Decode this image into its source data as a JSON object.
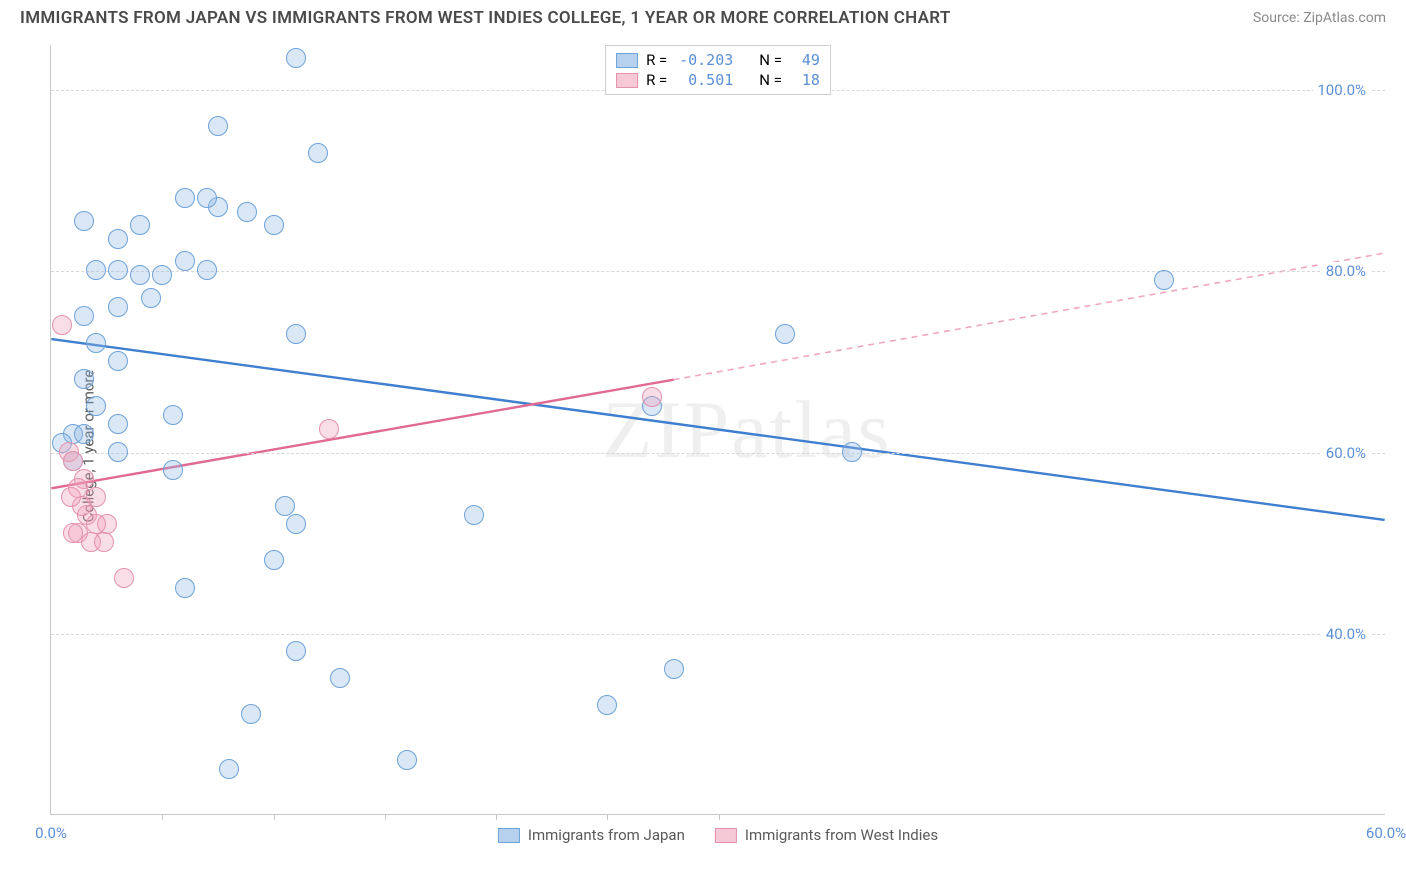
{
  "title": "IMMIGRANTS FROM JAPAN VS IMMIGRANTS FROM WEST INDIES COLLEGE, 1 YEAR OR MORE CORRELATION CHART",
  "source": "Source: ZipAtlas.com",
  "watermark": "ZIPatlas",
  "y_axis_title": "College, 1 year or more",
  "chart": {
    "type": "scatter",
    "xlim": [
      0,
      60
    ],
    "ylim": [
      20,
      105
    ],
    "background_color": "#ffffff",
    "grid_color": "#d8d8d8",
    "axis_color": "#c8c8c8",
    "tick_color": "#5b8fd6",
    "tick_fontsize": 15,
    "xticks": [
      0,
      5,
      10,
      15,
      20,
      25,
      30,
      60
    ],
    "xtick_labels": {
      "0": "0.0%",
      "60": "60.0%"
    },
    "yticks": [
      40,
      60,
      80,
      100
    ],
    "ytick_labels": {
      "40": "40.0%",
      "60": "60.0%",
      "80": "80.0%",
      "100": "100.0%"
    },
    "series": [
      {
        "name": "Immigrants from Japan",
        "fill": "rgba(145,185,230,0.35)",
        "stroke": "#6ea3d8",
        "swatch_fill": "#b6d1ee",
        "swatch_stroke": "#6ea3d8",
        "marker_radius": 10,
        "R": "-0.203",
        "N": "49",
        "trend": {
          "x1": 0,
          "y1": 72.5,
          "x2": 60,
          "y2": 52.5,
          "color": "#3f7fcf",
          "width": 2.4
        },
        "points": [
          [
            11,
            103.5
          ],
          [
            7.5,
            96
          ],
          [
            12,
            93
          ],
          [
            10,
            85
          ],
          [
            7.5,
            87
          ],
          [
            8.8,
            86.5
          ],
          [
            7,
            88
          ],
          [
            4,
            85
          ],
          [
            6,
            88
          ],
          [
            1.5,
            85.5
          ],
          [
            3,
            83.5
          ],
          [
            11,
            38
          ],
          [
            2,
            80
          ],
          [
            3,
            80
          ],
          [
            4,
            79.5
          ],
          [
            5,
            79.5
          ],
          [
            6,
            81
          ],
          [
            7,
            80
          ],
          [
            1.5,
            75
          ],
          [
            3,
            76
          ],
          [
            4.5,
            77
          ],
          [
            2,
            72
          ],
          [
            11,
            73
          ],
          [
            1.5,
            68
          ],
          [
            3,
            70
          ],
          [
            5.5,
            64
          ],
          [
            2,
            65
          ],
          [
            3,
            63
          ],
          [
            3,
            60
          ],
          [
            1,
            62
          ],
          [
            1.5,
            62
          ],
          [
            5.5,
            58
          ],
          [
            1,
            59
          ],
          [
            0.5,
            61
          ],
          [
            10.5,
            54
          ],
          [
            19,
            53
          ],
          [
            6,
            45
          ],
          [
            10,
            48
          ],
          [
            11,
            52
          ],
          [
            13,
            35
          ],
          [
            9,
            31
          ],
          [
            25,
            32
          ],
          [
            8,
            25
          ],
          [
            16,
            26
          ],
          [
            33,
            73
          ],
          [
            36,
            60
          ],
          [
            50,
            79
          ],
          [
            28,
            36
          ],
          [
            27,
            65
          ]
        ]
      },
      {
        "name": "Immigrants from West Indies",
        "fill": "rgba(240,160,185,0.35)",
        "stroke": "#e592ae",
        "swatch_fill": "#f6c9d7",
        "swatch_stroke": "#e592ae",
        "marker_radius": 10,
        "R": "0.501",
        "N": "18",
        "trend": {
          "solid": {
            "x1": 0,
            "y1": 56,
            "x2": 28,
            "y2": 68,
            "color": "#e06a93",
            "width": 2.4
          },
          "dashed": {
            "x1": 28,
            "y1": 68,
            "x2": 60,
            "y2": 82,
            "color": "#f0a8bd",
            "width": 1.6
          }
        },
        "points": [
          [
            0.5,
            74
          ],
          [
            0.8,
            60
          ],
          [
            1,
            59
          ],
          [
            1.5,
            57
          ],
          [
            1.2,
            56
          ],
          [
            2,
            55
          ],
          [
            1.6,
            53
          ],
          [
            1.2,
            51
          ],
          [
            2.5,
            52
          ],
          [
            1.8,
            50
          ],
          [
            2.4,
            50
          ],
          [
            3.3,
            46
          ],
          [
            1,
            51
          ],
          [
            2,
            52
          ],
          [
            1.4,
            54
          ],
          [
            0.9,
            55
          ],
          [
            12.5,
            62.5
          ],
          [
            27,
            66
          ]
        ]
      }
    ]
  },
  "legend_top": {
    "R_label": "R =",
    "N_label": "N ="
  }
}
